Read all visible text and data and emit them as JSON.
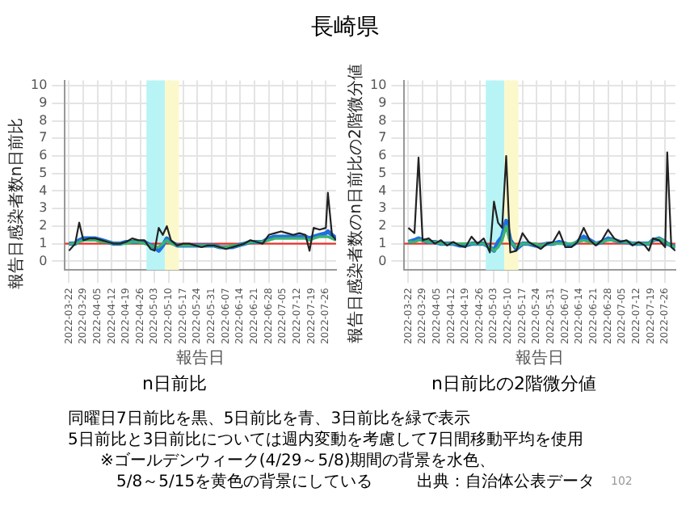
{
  "chart_data": [
    {
      "type": "line",
      "title": "n日前比",
      "xlabel": "報告日",
      "ylabel": "報告日感染者数n日前比",
      "x": [
        "2022-03-22",
        "2022-03-25",
        "2022-03-27",
        "2022-03-29",
        "2022-04-01",
        "2022-04-04",
        "2022-04-07",
        "2022-04-10",
        "2022-04-13",
        "2022-04-16",
        "2022-04-19",
        "2022-04-22",
        "2022-04-25",
        "2022-04-28",
        "2022-05-01",
        "2022-05-03",
        "2022-05-05",
        "2022-05-07",
        "2022-05-09",
        "2022-05-11",
        "2022-05-14",
        "2022-05-17",
        "2022-05-20",
        "2022-05-23",
        "2022-05-26",
        "2022-05-29",
        "2022-06-01",
        "2022-06-04",
        "2022-06-07",
        "2022-06-10",
        "2022-06-13",
        "2022-06-16",
        "2022-06-19",
        "2022-06-22",
        "2022-06-25",
        "2022-06-28",
        "2022-07-01",
        "2022-07-04",
        "2022-07-07",
        "2022-07-10",
        "2022-07-13",
        "2022-07-16",
        "2022-07-18",
        "2022-07-20",
        "2022-07-23",
        "2022-07-26",
        "2022-07-27",
        "2022-07-29",
        "2022-07-31"
      ],
      "series": [
        {
          "color": "#222222",
          "values": [
            0.6,
            1.0,
            2.2,
            1.2,
            1.3,
            1.3,
            1.2,
            1.1,
            1.0,
            1.0,
            1.1,
            1.3,
            1.2,
            1.2,
            0.7,
            0.6,
            1.9,
            1.5,
            2.0,
            1.2,
            0.9,
            1.0,
            1.0,
            0.9,
            0.8,
            0.9,
            0.9,
            0.8,
            0.7,
            0.8,
            0.9,
            1.0,
            1.2,
            1.1,
            1.0,
            1.5,
            1.6,
            1.7,
            1.6,
            1.5,
            1.6,
            1.5,
            0.6,
            1.9,
            1.8,
            1.9,
            3.9,
            1.5,
            1.2
          ]
        },
        {
          "color": "#1f6fe0",
          "values": [
            1.0,
            1.0,
            1.2,
            1.3,
            1.3,
            1.3,
            1.2,
            1.1,
            1.0,
            1.0,
            1.1,
            1.1,
            1.1,
            1.1,
            0.9,
            0.8,
            0.6,
            0.9,
            1.3,
            1.1,
            0.9,
            0.9,
            0.9,
            0.9,
            0.9,
            0.9,
            0.9,
            0.8,
            0.8,
            0.8,
            0.9,
            1.0,
            1.1,
            1.1,
            1.1,
            1.3,
            1.4,
            1.4,
            1.4,
            1.4,
            1.4,
            1.4,
            1.3,
            1.4,
            1.5,
            1.6,
            1.7,
            1.5,
            1.3
          ]
        },
        {
          "color": "#3cb371",
          "values": [
            1.0,
            1.0,
            1.1,
            1.2,
            1.2,
            1.2,
            1.1,
            1.1,
            1.0,
            1.0,
            1.0,
            1.1,
            1.1,
            1.0,
            0.9,
            0.8,
            0.8,
            1.0,
            1.2,
            1.0,
            0.9,
            0.9,
            0.9,
            0.9,
            0.9,
            0.9,
            0.9,
            0.8,
            0.8,
            0.9,
            0.9,
            1.0,
            1.1,
            1.1,
            1.1,
            1.2,
            1.3,
            1.3,
            1.3,
            1.3,
            1.3,
            1.3,
            1.2,
            1.3,
            1.4,
            1.4,
            1.4,
            1.3,
            1.2
          ]
        }
      ],
      "xlim": [
        "2022-03-20",
        "2022-07-31"
      ],
      "xticks": [
        "2022-03-22",
        "2022-03-29",
        "2022-04-05",
        "2022-04-12",
        "2022-04-19",
        "2022-04-26",
        "2022-05-03",
        "2022-05-10",
        "2022-05-17",
        "2022-05-24",
        "2022-05-31",
        "2022-06-07",
        "2022-06-14",
        "2022-06-21",
        "2022-06-28",
        "2022-07-05",
        "2022-07-12",
        "2022-07-19",
        "2022-07-26"
      ],
      "ylim": [
        -0.5,
        10.3
      ],
      "yticks": [
        0,
        1,
        2,
        3,
        4,
        5,
        6,
        7,
        8,
        9,
        10
      ],
      "ref_lines": [
        {
          "axis": "y",
          "value": 1,
          "color": "#e8332a"
        }
      ],
      "bands": [
        {
          "axis": "x",
          "from": "2022-04-29",
          "to": "2022-05-08",
          "color": "#b8f4f6"
        },
        {
          "axis": "x",
          "from": "2022-05-08",
          "to": "2022-05-15",
          "color": "#fbf9cc"
        }
      ],
      "grid": true,
      "legend": false,
      "marker": "none",
      "line_style": "solid",
      "annotations": [
        "長崎県",
        "同曜日7日前比を黒、5日前比を青、3日前比を緑で表示",
        "5日前比と3日前比については週内変動を考慮して7日間移動平均を使用",
        "※ゴールデンウィーク(4/29～5/8)期間の背景を水色、",
        "5/8～5/15を黄色の背景にしている",
        "出典：自治体公表データ",
        "102"
      ]
    },
    {
      "type": "line",
      "title": "n日前比の2階微分値",
      "xlabel": "報告日",
      "ylabel": "報告日感染者数のn日前比の2階微分値",
      "x": [
        "2022-03-22",
        "2022-03-25",
        "2022-03-27",
        "2022-03-29",
        "2022-04-01",
        "2022-04-04",
        "2022-04-07",
        "2022-04-10",
        "2022-04-13",
        "2022-04-16",
        "2022-04-19",
        "2022-04-22",
        "2022-04-25",
        "2022-04-28",
        "2022-05-01",
        "2022-05-03",
        "2022-05-05",
        "2022-05-07",
        "2022-05-09",
        "2022-05-11",
        "2022-05-14",
        "2022-05-17",
        "2022-05-20",
        "2022-05-23",
        "2022-05-26",
        "2022-05-29",
        "2022-06-01",
        "2022-06-04",
        "2022-06-07",
        "2022-06-10",
        "2022-06-13",
        "2022-06-16",
        "2022-06-19",
        "2022-06-22",
        "2022-06-25",
        "2022-06-28",
        "2022-07-01",
        "2022-07-04",
        "2022-07-07",
        "2022-07-10",
        "2022-07-13",
        "2022-07-16",
        "2022-07-18",
        "2022-07-20",
        "2022-07-23",
        "2022-07-26",
        "2022-07-27",
        "2022-07-29",
        "2022-07-31"
      ],
      "series": [
        {
          "color": "#222222",
          "values": [
            1.9,
            1.6,
            5.9,
            1.2,
            1.3,
            1.0,
            1.2,
            0.9,
            1.1,
            0.9,
            0.8,
            1.4,
            1.0,
            1.3,
            0.5,
            3.4,
            2.2,
            1.9,
            6.0,
            0.5,
            0.6,
            1.6,
            1.1,
            0.9,
            0.7,
            1.0,
            1.1,
            1.7,
            0.8,
            0.8,
            1.1,
            1.9,
            1.2,
            0.9,
            1.2,
            1.8,
            1.3,
            1.1,
            1.2,
            0.9,
            1.1,
            0.9,
            0.6,
            1.3,
            1.2,
            0.8,
            6.2,
            0.8,
            0.6
          ]
        },
        {
          "color": "#1f6fe0",
          "values": [
            1.1,
            1.2,
            1.3,
            1.2,
            1.1,
            1.1,
            1.0,
            1.0,
            1.0,
            0.9,
            0.9,
            1.0,
            1.0,
            1.0,
            0.8,
            0.6,
            1.1,
            1.4,
            2.3,
            1.2,
            0.7,
            1.0,
            1.0,
            0.9,
            0.9,
            1.0,
            1.0,
            1.1,
            1.0,
            0.9,
            1.1,
            1.4,
            1.2,
            1.0,
            1.1,
            1.3,
            1.2,
            1.1,
            1.1,
            1.0,
            1.0,
            1.0,
            1.0,
            1.2,
            1.3,
            1.1,
            1.0,
            0.9,
            0.8
          ]
        },
        {
          "color": "#3cb371",
          "values": [
            1.1,
            1.1,
            1.2,
            1.2,
            1.1,
            1.1,
            1.0,
            1.0,
            1.0,
            1.0,
            1.0,
            1.0,
            1.0,
            1.0,
            0.8,
            0.6,
            0.8,
            1.2,
            2.0,
            1.1,
            0.8,
            1.0,
            1.0,
            1.0,
            0.9,
            1.0,
            1.0,
            1.0,
            1.0,
            1.0,
            1.1,
            1.2,
            1.1,
            1.0,
            1.1,
            1.2,
            1.2,
            1.1,
            1.1,
            1.0,
            1.0,
            1.0,
            1.0,
            1.2,
            1.3,
            1.1,
            1.0,
            0.9,
            0.8
          ]
        }
      ],
      "xlim": [
        "2022-03-20",
        "2022-07-31"
      ],
      "xticks": [
        "2022-03-22",
        "2022-03-29",
        "2022-04-05",
        "2022-04-12",
        "2022-04-19",
        "2022-04-26",
        "2022-05-03",
        "2022-05-10",
        "2022-05-17",
        "2022-05-24",
        "2022-05-31",
        "2022-06-07",
        "2022-06-14",
        "2022-06-21",
        "2022-06-28",
        "2022-07-05",
        "2022-07-12",
        "2022-07-19",
        "2022-07-26"
      ],
      "ylim": [
        -0.5,
        10.3
      ],
      "yticks": [
        0,
        1,
        2,
        3,
        4,
        5,
        6,
        7,
        8,
        9,
        10
      ],
      "ref_lines": [
        {
          "axis": "y",
          "value": 1,
          "color": "#e8332a"
        }
      ],
      "bands": [
        {
          "axis": "x",
          "from": "2022-04-29",
          "to": "2022-05-08",
          "color": "#b8f4f6"
        },
        {
          "axis": "x",
          "from": "2022-05-08",
          "to": "2022-05-15",
          "color": "#fbf9cc"
        }
      ],
      "grid": true,
      "legend": false,
      "marker": "none",
      "line_style": "solid"
    }
  ]
}
